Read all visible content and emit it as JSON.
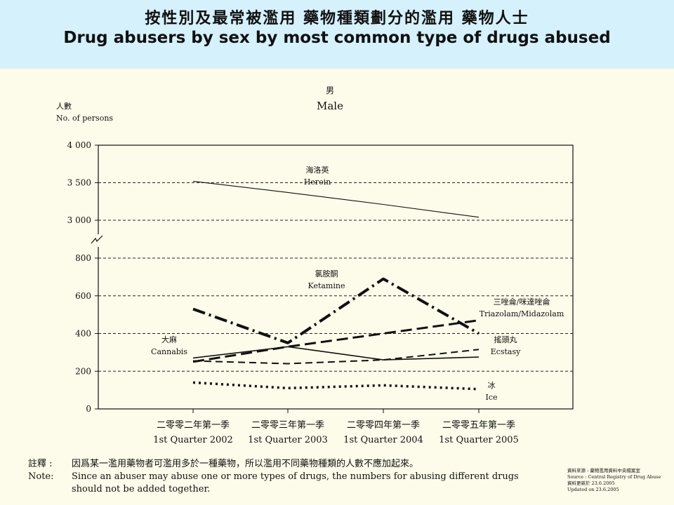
{
  "header": {
    "title_zh": "按性別及最常被濫用 藥物種類劃分的濫用 藥物人士",
    "title_en": "Drug abusers by sex by most common type of drugs abused"
  },
  "panel": {
    "title_zh": "男",
    "title_en": "Male"
  },
  "chart_data": {
    "type": "line",
    "title": "男 Male",
    "ylabel_zh": "人數",
    "ylabel": "No. of persons",
    "y_axis_break": true,
    "ylim_lower": [
      0,
      800
    ],
    "ylim_upper": [
      3000,
      4000
    ],
    "yticks": [
      "0",
      "200",
      "400",
      "600",
      "800",
      "3 000",
      "3 500",
      "4 000"
    ],
    "categories_zh": [
      "二零零二年第一季",
      "二零零三年第一季",
      "二零零四年第一季",
      "二零零五年第一季"
    ],
    "categories": [
      "1st Quarter 2002",
      "1st Quarter 2003",
      "1st Quarter 2004",
      "1st Quarter 2005"
    ],
    "grid": "horizontal dashed",
    "series": [
      {
        "name": "Heroin",
        "name_zh": "海洛英",
        "values": [
          3520,
          3370,
          3210,
          3040
        ]
      },
      {
        "name": "Ketamine",
        "name_zh": "氯胺酮",
        "values": [
          530,
          350,
          690,
          400
        ]
      },
      {
        "name": "Triazolam/Midazolam",
        "name_zh": "三唑侖/咪達唑侖",
        "values": [
          250,
          330,
          400,
          470
        ]
      },
      {
        "name": "Cannabis",
        "name_zh": "大麻",
        "values": [
          270,
          330,
          260,
          275
        ]
      },
      {
        "name": "Ecstasy",
        "name_zh": "搖頭丸",
        "values": [
          255,
          240,
          260,
          315
        ]
      },
      {
        "name": "Ice",
        "name_zh": "冰",
        "values": [
          140,
          110,
          125,
          105
        ]
      }
    ]
  },
  "note": {
    "head_zh": "註釋 :",
    "head_en": "Note:",
    "text_zh": "因爲某一濫用藥物者可濫用多於一種藥物，所以濫用不同藥物種類的人數不應加起來。",
    "text_en_1": "Since an abuser may abuse one or more types of drugs, the numbers for abusing different drugs",
    "text_en_2": "should not be added together."
  },
  "source": {
    "zh_1": "資料來源 : 藥物濫用資料中央檔案室",
    "en_1": "Source : Central Registry of Drug Abuse",
    "zh_2": "資料更新於 23.6.2005",
    "en_2": "Updated on 23.6.2005"
  }
}
